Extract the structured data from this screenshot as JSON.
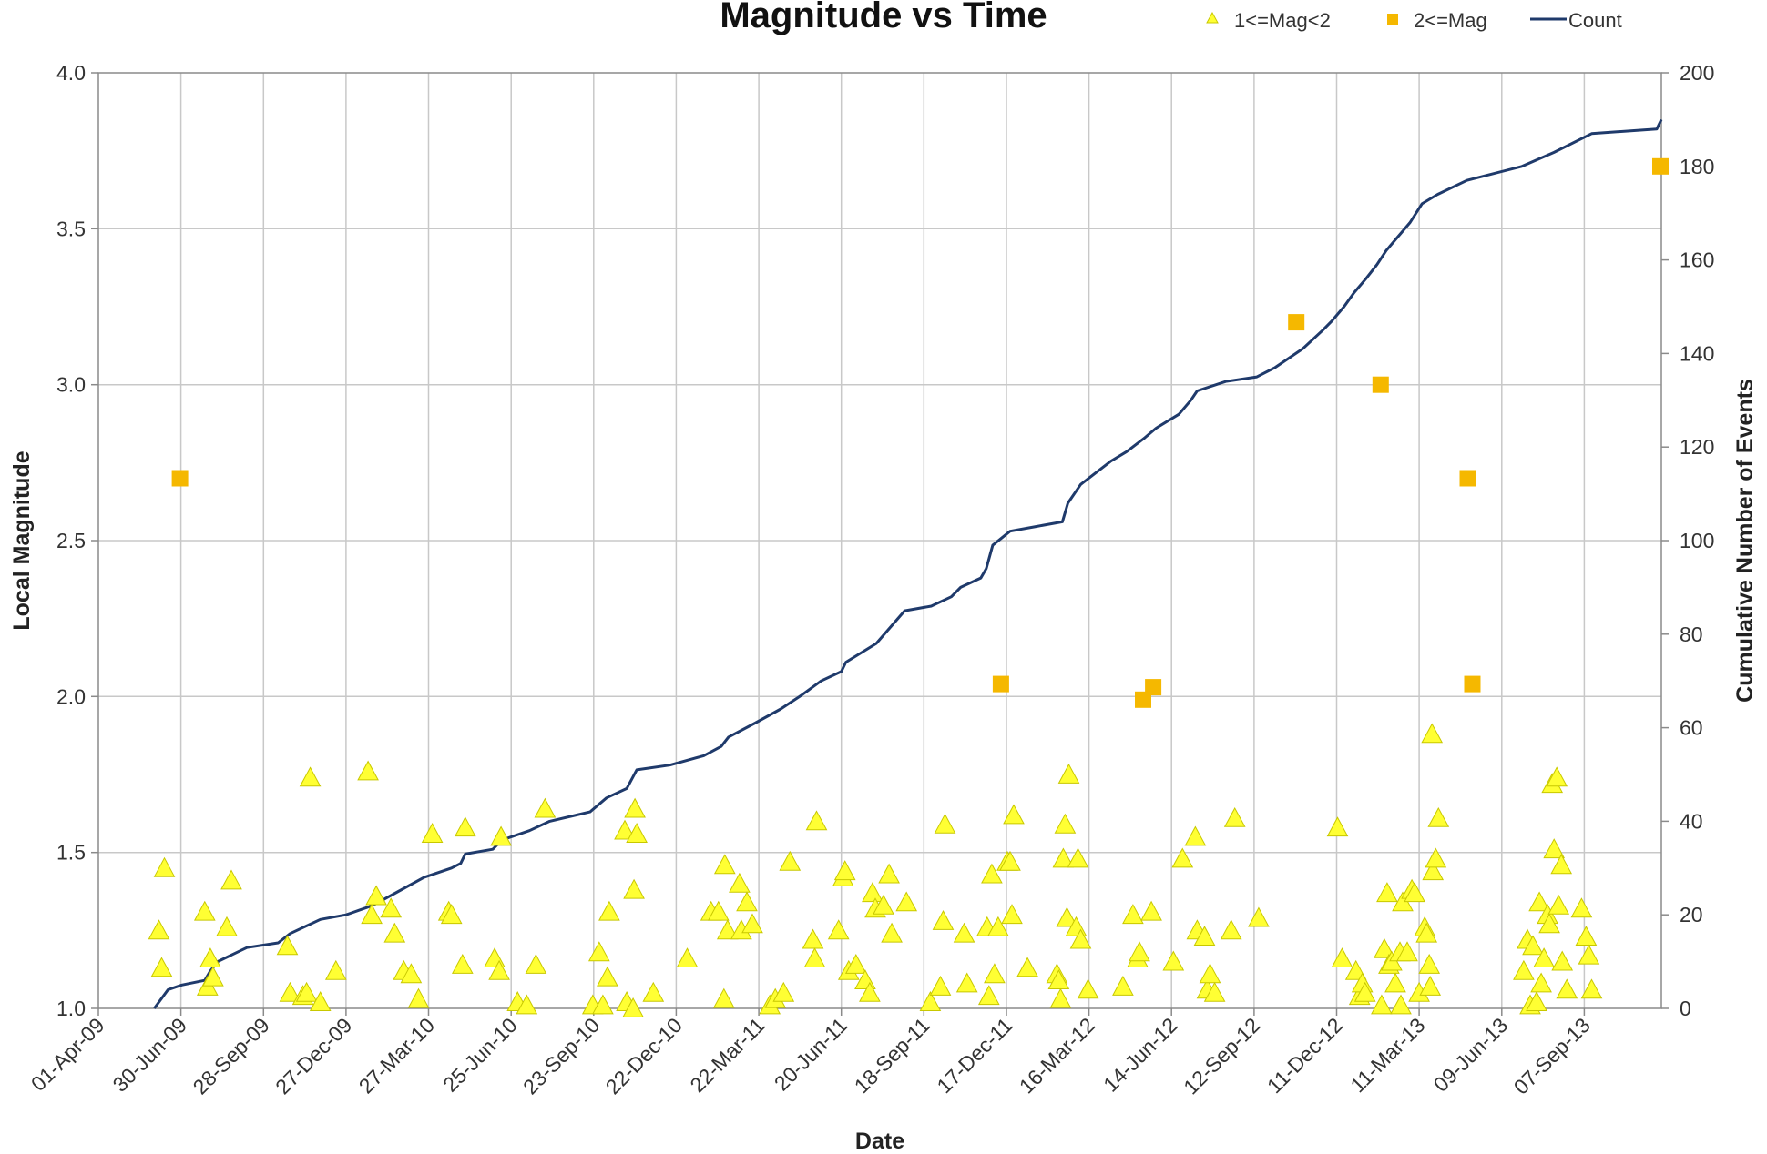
{
  "chart_data": {
    "type": "scatter",
    "title": "Magnitude vs Time",
    "xlabel": "Date",
    "ylabel": "Local Magnitude",
    "y2label": "Cumulative Number of Events",
    "xlim": [
      "2009-04-01",
      "2013-11-30"
    ],
    "ylim": [
      1.0,
      4.0
    ],
    "y2lim": [
      0,
      200
    ],
    "x_tick_labels": [
      "01-Apr-09",
      "30-Jun-09",
      "28-Sep-09",
      "27-Dec-09",
      "27-Mar-10",
      "25-Jun-10",
      "23-Sep-10",
      "22-Dec-10",
      "22-Mar-11",
      "20-Jun-11",
      "18-Sep-11",
      "17-Dec-11",
      "16-Mar-12",
      "14-Jun-12",
      "12-Sep-12",
      "11-Dec-12",
      "11-Mar-13",
      "09-Jun-13",
      "07-Sep-13"
    ],
    "y_tick_labels": [
      "1.0",
      "1.5",
      "2.0",
      "2.5",
      "3.0",
      "3.5",
      "4.0"
    ],
    "y2_tick_labels": [
      "0",
      "20",
      "40",
      "60",
      "80",
      "100",
      "120",
      "140",
      "160",
      "180",
      "200"
    ],
    "grid": true,
    "legend": "top-right",
    "colors": {
      "small": "#ffff33",
      "small_stroke": "#c8c800",
      "large": "#f5b800",
      "count": "#1f3a6b"
    },
    "series": [
      {
        "name": "1<=Mag<2",
        "marker": "triangle",
        "axis": "left",
        "points": [
          [
            "2009-06-06",
            1.25
          ],
          [
            "2009-06-09",
            1.13
          ],
          [
            "2009-06-12",
            1.45
          ],
          [
            "2009-07-26",
            1.31
          ],
          [
            "2009-07-29",
            1.07
          ],
          [
            "2009-08-01",
            1.16
          ],
          [
            "2009-08-04",
            1.1
          ],
          [
            "2009-08-19",
            1.26
          ],
          [
            "2009-08-24",
            1.41
          ],
          [
            "2009-10-24",
            1.2
          ],
          [
            "2009-10-27",
            1.05
          ],
          [
            "2009-11-10",
            1.04
          ],
          [
            "2009-11-14",
            1.05
          ],
          [
            "2009-11-18",
            1.74
          ],
          [
            "2009-11-29",
            1.02
          ],
          [
            "2009-12-16",
            1.12
          ],
          [
            "2010-01-20",
            1.76
          ],
          [
            "2010-01-24",
            1.3
          ],
          [
            "2010-01-29",
            1.36
          ],
          [
            "2010-02-14",
            1.32
          ],
          [
            "2010-02-18",
            1.24
          ],
          [
            "2010-02-28",
            1.12
          ],
          [
            "2010-03-08",
            1.11
          ],
          [
            "2010-03-16",
            1.03
          ],
          [
            "2010-03-31",
            1.56
          ],
          [
            "2010-04-18",
            1.31
          ],
          [
            "2010-04-21",
            1.3
          ],
          [
            "2010-05-03",
            1.14
          ],
          [
            "2010-05-06",
            1.58
          ],
          [
            "2010-06-07",
            1.16
          ],
          [
            "2010-06-12",
            1.12
          ],
          [
            "2010-06-14",
            1.55
          ],
          [
            "2010-07-02",
            1.02
          ],
          [
            "2010-07-12",
            1.01
          ],
          [
            "2010-07-22",
            1.14
          ],
          [
            "2010-08-01",
            1.64
          ],
          [
            "2010-09-22",
            1.01
          ],
          [
            "2010-09-29",
            1.18
          ],
          [
            "2010-10-03",
            1.01
          ],
          [
            "2010-10-08",
            1.1
          ],
          [
            "2010-10-10",
            1.31
          ],
          [
            "2010-10-27",
            1.57
          ],
          [
            "2010-10-29",
            1.02
          ],
          [
            "2010-11-05",
            1.0
          ],
          [
            "2010-11-06",
            1.38
          ],
          [
            "2010-11-07",
            1.64
          ],
          [
            "2010-11-09",
            1.56
          ],
          [
            "2010-11-27",
            1.05
          ],
          [
            "2011-01-03",
            1.16
          ],
          [
            "2011-01-29",
            1.31
          ],
          [
            "2011-02-06",
            1.31
          ],
          [
            "2011-02-12",
            1.03
          ],
          [
            "2011-02-13",
            1.46
          ],
          [
            "2011-02-16",
            1.25
          ],
          [
            "2011-03-01",
            1.4
          ],
          [
            "2011-03-03",
            1.25
          ],
          [
            "2011-03-09",
            1.34
          ],
          [
            "2011-03-15",
            1.27
          ],
          [
            "2011-04-03",
            1.01
          ],
          [
            "2011-04-09",
            1.03
          ],
          [
            "2011-04-18",
            1.05
          ],
          [
            "2011-04-25",
            1.47
          ],
          [
            "2011-05-20",
            1.22
          ],
          [
            "2011-05-22",
            1.16
          ],
          [
            "2011-05-24",
            1.6
          ],
          [
            "2011-06-17",
            1.25
          ],
          [
            "2011-06-22",
            1.42
          ],
          [
            "2011-06-24",
            1.44
          ],
          [
            "2011-06-28",
            1.12
          ],
          [
            "2011-07-06",
            1.14
          ],
          [
            "2011-07-16",
            1.09
          ],
          [
            "2011-07-21",
            1.05
          ],
          [
            "2011-07-24",
            1.37
          ],
          [
            "2011-07-27",
            1.32
          ],
          [
            "2011-08-05",
            1.33
          ],
          [
            "2011-08-11",
            1.43
          ],
          [
            "2011-08-14",
            1.24
          ],
          [
            "2011-08-30",
            1.34
          ],
          [
            "2011-09-25",
            1.02
          ],
          [
            "2011-10-06",
            1.07
          ],
          [
            "2011-10-09",
            1.28
          ],
          [
            "2011-10-11",
            1.59
          ],
          [
            "2011-11-01",
            1.24
          ],
          [
            "2011-11-04",
            1.08
          ],
          [
            "2011-11-26",
            1.26
          ],
          [
            "2011-11-28",
            1.04
          ],
          [
            "2011-12-01",
            1.43
          ],
          [
            "2011-12-04",
            1.11
          ],
          [
            "2011-12-08",
            1.26
          ],
          [
            "2011-12-18",
            1.47
          ],
          [
            "2011-12-21",
            1.47
          ],
          [
            "2011-12-23",
            1.3
          ],
          [
            "2011-12-25",
            1.62
          ],
          [
            "2012-01-09",
            1.13
          ],
          [
            "2012-02-10",
            1.11
          ],
          [
            "2012-02-12",
            1.09
          ],
          [
            "2012-02-14",
            1.03
          ],
          [
            "2012-02-17",
            1.48
          ],
          [
            "2012-02-19",
            1.59
          ],
          [
            "2012-02-21",
            1.29
          ],
          [
            "2012-02-23",
            1.75
          ],
          [
            "2012-03-02",
            1.26
          ],
          [
            "2012-03-04",
            1.48
          ],
          [
            "2012-03-07",
            1.22
          ],
          [
            "2012-03-15",
            1.06
          ],
          [
            "2012-04-22",
            1.07
          ],
          [
            "2012-05-03",
            1.3
          ],
          [
            "2012-05-08",
            1.16
          ],
          [
            "2012-05-10",
            1.18
          ],
          [
            "2012-05-23",
            1.31
          ],
          [
            "2012-06-16",
            1.15
          ],
          [
            "2012-06-26",
            1.48
          ],
          [
            "2012-07-10",
            1.55
          ],
          [
            "2012-07-12",
            1.25
          ],
          [
            "2012-07-20",
            1.23
          ],
          [
            "2012-07-23",
            1.06
          ],
          [
            "2012-07-26",
            1.11
          ],
          [
            "2012-07-31",
            1.05
          ],
          [
            "2012-08-18",
            1.25
          ],
          [
            "2012-08-22",
            1.61
          ],
          [
            "2012-09-17",
            1.29
          ],
          [
            "2012-12-12",
            1.58
          ],
          [
            "2012-12-17",
            1.16
          ],
          [
            "2013-01-01",
            1.12
          ],
          [
            "2013-01-05",
            1.04
          ],
          [
            "2013-01-08",
            1.08
          ],
          [
            "2013-01-11",
            1.05
          ],
          [
            "2013-01-29",
            1.01
          ],
          [
            "2013-02-01",
            1.19
          ],
          [
            "2013-02-04",
            1.37
          ],
          [
            "2013-02-06",
            1.14
          ],
          [
            "2013-02-09",
            1.15
          ],
          [
            "2013-02-13",
            1.08
          ],
          [
            "2013-02-18",
            1.18
          ],
          [
            "2013-02-19",
            1.01
          ],
          [
            "2013-02-21",
            1.34
          ],
          [
            "2013-02-26",
            1.18
          ],
          [
            "2013-03-03",
            1.38
          ],
          [
            "2013-03-06",
            1.37
          ],
          [
            "2013-03-11",
            1.05
          ],
          [
            "2013-03-17",
            1.26
          ],
          [
            "2013-03-19",
            1.24
          ],
          [
            "2013-03-22",
            1.14
          ],
          [
            "2013-03-23",
            1.07
          ],
          [
            "2013-03-25",
            1.88
          ],
          [
            "2013-03-26",
            1.44
          ],
          [
            "2013-03-29",
            1.48
          ],
          [
            "2013-04-01",
            1.61
          ],
          [
            "2013-07-03",
            1.12
          ],
          [
            "2013-07-07",
            1.22
          ],
          [
            "2013-07-10",
            1.01
          ],
          [
            "2013-07-13",
            1.2
          ],
          [
            "2013-07-17",
            1.02
          ],
          [
            "2013-07-20",
            1.34
          ],
          [
            "2013-07-22",
            1.08
          ],
          [
            "2013-07-25",
            1.16
          ],
          [
            "2013-07-29",
            1.3
          ],
          [
            "2013-07-31",
            1.27
          ],
          [
            "2013-08-03",
            1.72
          ],
          [
            "2013-08-05",
            1.51
          ],
          [
            "2013-08-08",
            1.74
          ],
          [
            "2013-08-10",
            1.33
          ],
          [
            "2013-08-13",
            1.46
          ],
          [
            "2013-08-14",
            1.15
          ],
          [
            "2013-08-19",
            1.06
          ],
          [
            "2013-09-04",
            1.32
          ],
          [
            "2013-09-09",
            1.23
          ],
          [
            "2013-09-12",
            1.17
          ],
          [
            "2013-09-15",
            1.06
          ]
        ]
      },
      {
        "name": "2<=Mag",
        "marker": "square",
        "axis": "left",
        "points": [
          [
            "2009-06-29",
            2.7
          ],
          [
            "2011-12-11",
            2.04
          ],
          [
            "2012-05-14",
            1.99
          ],
          [
            "2012-05-25",
            2.03
          ],
          [
            "2012-10-28",
            3.2
          ],
          [
            "2013-01-28",
            3.0
          ],
          [
            "2013-05-03",
            2.7
          ],
          [
            "2013-05-08",
            2.04
          ],
          [
            "2013-11-29",
            3.7
          ]
        ]
      },
      {
        "name": "Count",
        "marker": "line",
        "axis": "right",
        "points": [
          [
            "2009-06-01",
            0
          ],
          [
            "2009-06-16",
            4
          ],
          [
            "2009-07-01",
            5
          ],
          [
            "2009-07-26",
            6
          ],
          [
            "2009-08-01",
            8
          ],
          [
            "2009-08-09",
            10
          ],
          [
            "2009-09-10",
            13
          ],
          [
            "2009-10-14",
            14
          ],
          [
            "2009-10-27",
            16
          ],
          [
            "2009-11-29",
            19
          ],
          [
            "2009-12-27",
            20
          ],
          [
            "2010-01-25",
            22
          ],
          [
            "2010-02-22",
            25
          ],
          [
            "2010-03-22",
            28
          ],
          [
            "2010-04-21",
            30
          ],
          [
            "2010-05-01",
            31
          ],
          [
            "2010-05-06",
            33
          ],
          [
            "2010-06-05",
            34
          ],
          [
            "2010-06-15",
            36
          ],
          [
            "2010-07-15",
            38
          ],
          [
            "2010-08-06",
            40
          ],
          [
            "2010-09-19",
            42
          ],
          [
            "2010-10-07",
            45
          ],
          [
            "2010-10-29",
            47
          ],
          [
            "2010-11-09",
            51
          ],
          [
            "2010-12-15",
            52
          ],
          [
            "2011-01-21",
            54
          ],
          [
            "2011-02-09",
            56
          ],
          [
            "2011-02-17",
            58
          ],
          [
            "2011-03-18",
            61
          ],
          [
            "2011-04-15",
            64
          ],
          [
            "2011-05-08",
            67
          ],
          [
            "2011-05-29",
            70
          ],
          [
            "2011-06-20",
            72
          ],
          [
            "2011-06-25",
            74
          ],
          [
            "2011-07-28",
            78
          ],
          [
            "2011-08-28",
            85
          ],
          [
            "2011-09-26",
            86
          ],
          [
            "2011-10-18",
            88
          ],
          [
            "2011-10-28",
            90
          ],
          [
            "2011-11-19",
            92
          ],
          [
            "2011-11-25",
            94
          ],
          [
            "2011-12-02",
            99
          ],
          [
            "2011-12-21",
            102
          ],
          [
            "2012-01-18",
            103
          ],
          [
            "2012-02-16",
            104
          ],
          [
            "2012-02-22",
            108
          ],
          [
            "2012-03-07",
            112
          ],
          [
            "2012-04-09",
            117
          ],
          [
            "2012-04-26",
            119
          ],
          [
            "2012-05-16",
            122
          ],
          [
            "2012-05-28",
            124
          ],
          [
            "2012-06-22",
            127
          ],
          [
            "2012-07-05",
            130
          ],
          [
            "2012-07-12",
            132
          ],
          [
            "2012-08-12",
            134
          ],
          [
            "2012-09-15",
            135
          ],
          [
            "2012-10-05",
            137
          ],
          [
            "2012-11-04",
            141
          ],
          [
            "2012-11-26",
            145
          ],
          [
            "2012-12-06",
            147
          ],
          [
            "2012-12-19",
            150
          ],
          [
            "2012-12-30",
            153
          ],
          [
            "2013-01-12",
            156
          ],
          [
            "2013-01-24",
            159
          ],
          [
            "2013-02-03",
            162
          ],
          [
            "2013-02-16",
            165
          ],
          [
            "2013-03-01",
            168
          ],
          [
            "2013-03-14",
            172
          ],
          [
            "2013-03-31",
            174
          ],
          [
            "2013-05-02",
            177
          ],
          [
            "2013-07-01",
            180
          ],
          [
            "2013-08-05",
            183
          ],
          [
            "2013-09-15",
            187
          ],
          [
            "2013-11-25",
            188
          ],
          [
            "2013-11-30",
            190
          ]
        ]
      }
    ]
  }
}
